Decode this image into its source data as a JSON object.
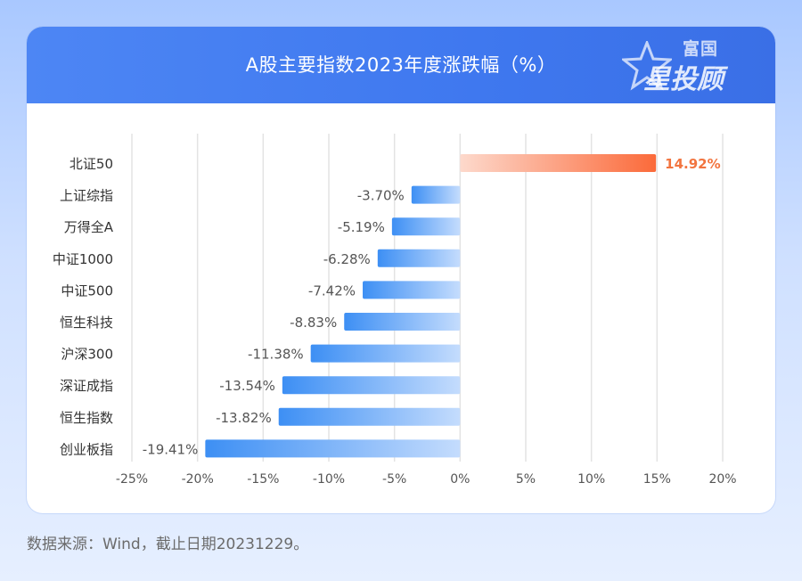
{
  "header": {
    "title": "A股主要指数2023年度涨跌幅（%）",
    "logo_small": "富国",
    "logo_big": "星投顾"
  },
  "footnote": "数据来源：Wind，截止日期20231229。",
  "colors": {
    "positive_bar_start": "#fdd9cc",
    "positive_bar_end": "#fb6a3a",
    "negative_bar_start": "#3d8ff4",
    "negative_bar_end": "#c4dcfd",
    "positive_label": "#f2743f",
    "negative_label": "#555555",
    "grid": "#e3e3e3"
  },
  "chart_data": {
    "type": "bar",
    "orientation": "horizontal",
    "title": "A股主要指数2023年度涨跌幅（%）",
    "categories": [
      "北证50",
      "上证综指",
      "万得全A",
      "中证1000",
      "中证500",
      "恒生科技",
      "沪深300",
      "深证成指",
      "恒生指数",
      "创业板指"
    ],
    "values": [
      14.92,
      -3.7,
      -5.19,
      -6.28,
      -7.42,
      -8.83,
      -11.38,
      -13.54,
      -13.82,
      -19.41
    ],
    "value_labels": [
      "14.92%",
      "-3.70%",
      "-5.19%",
      "-6.28%",
      "-7.42%",
      "-8.83%",
      "-11.38%",
      "-13.54%",
      "-13.82%",
      "-19.41%"
    ],
    "x_ticks": [
      -25,
      -20,
      -15,
      -10,
      -5,
      0,
      5,
      10,
      15,
      20
    ],
    "x_tick_labels": [
      "-25%",
      "-20%",
      "-15%",
      "-10%",
      "-5%",
      "0%",
      "5%",
      "10%",
      "15%",
      "20%"
    ],
    "xlim": [
      -25,
      20
    ],
    "xlabel": "",
    "ylabel": "",
    "grid": true,
    "legend": "none"
  }
}
